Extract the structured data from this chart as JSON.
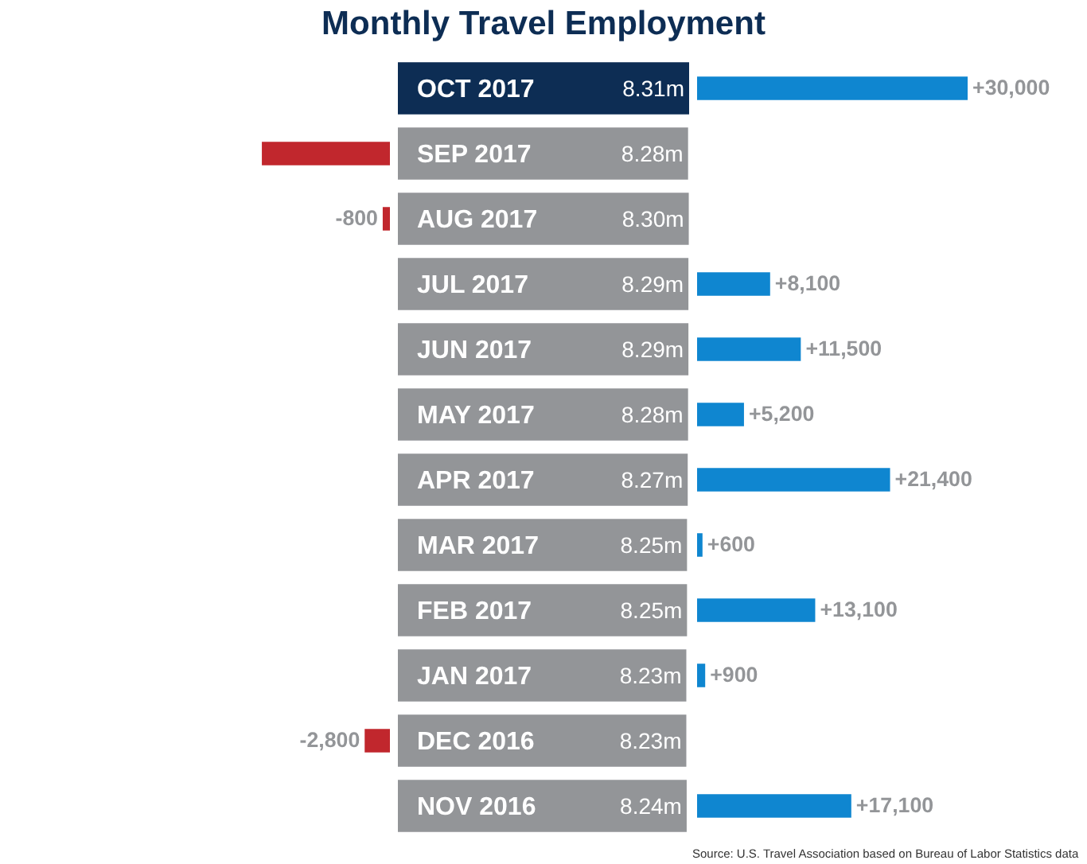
{
  "chart_data": [
    {
      "type": "bar",
      "orientation": "horizontal",
      "categories": [
        "OCT 2017",
        "SEP 2017",
        "AUG 2017",
        "JUL 2017",
        "JUN 2017",
        "MAY 2017",
        "APR 2017",
        "MAR 2017",
        "FEB 2017",
        "JAN 2017",
        "DEC 2016",
        "NOV 2016"
      ],
      "values": [
        null,
        -14200,
        -800,
        null,
        null,
        null,
        null,
        null,
        null,
        null,
        -2800,
        null
      ],
      "value_labels": [
        null,
        null,
        "-800",
        null,
        null,
        null,
        null,
        null,
        null,
        null,
        "-2,800",
        null
      ],
      "color": "#c1272d",
      "tick_labels": false
    },
    {
      "type": "bar",
      "orientation": "horizontal",
      "title": "Monthly Travel Employment",
      "categories": [
        "OCT 2017",
        "SEP 2017",
        "AUG 2017",
        "JUL 2017",
        "JUN 2017",
        "MAY 2017",
        "APR 2017",
        "MAR 2017",
        "FEB 2017",
        "JAN 2017",
        "DEC 2016",
        "NOV 2016"
      ],
      "values": [
        8.31,
        8.28,
        8.3,
        8.29,
        8.29,
        8.28,
        8.27,
        8.25,
        8.25,
        8.23,
        8.23,
        8.24
      ],
      "value_labels": [
        "8.31m",
        "8.28m",
        "8.30m",
        "8.29m",
        "8.29m",
        "8.28m",
        "8.27m",
        "8.25m",
        "8.25m",
        "8.23m",
        "8.23m",
        "8.24m"
      ],
      "colors": [
        "#0d2d54",
        "#939598",
        "#939598",
        "#939598",
        "#939598",
        "#939598",
        "#939598",
        "#939598",
        "#939598",
        "#939598",
        "#939598",
        "#939598"
      ],
      "tick_labels": "y"
    },
    {
      "type": "bar",
      "orientation": "horizontal",
      "categories": [
        "OCT 2017",
        "SEP 2017",
        "AUG 2017",
        "JUL 2017",
        "JUN 2017",
        "MAY 2017",
        "APR 2017",
        "MAR 2017",
        "FEB 2017",
        "JAN 2017",
        "DEC 2016",
        "NOV 2016"
      ],
      "values": [
        30000,
        null,
        null,
        8100,
        11500,
        5200,
        21400,
        600,
        13100,
        900,
        null,
        17100
      ],
      "value_labels": [
        "+30,000",
        null,
        null,
        "+8,100",
        "+11,500",
        "+5,200",
        "+21,400",
        "+600",
        "+13,100",
        "+900",
        null,
        "+17,100"
      ],
      "color": "#0f86d0",
      "tick_labels": false,
      "annotations": [
        "Source: U.S. Travel Association based on Bureau of Labor Statistics data"
      ]
    }
  ]
}
